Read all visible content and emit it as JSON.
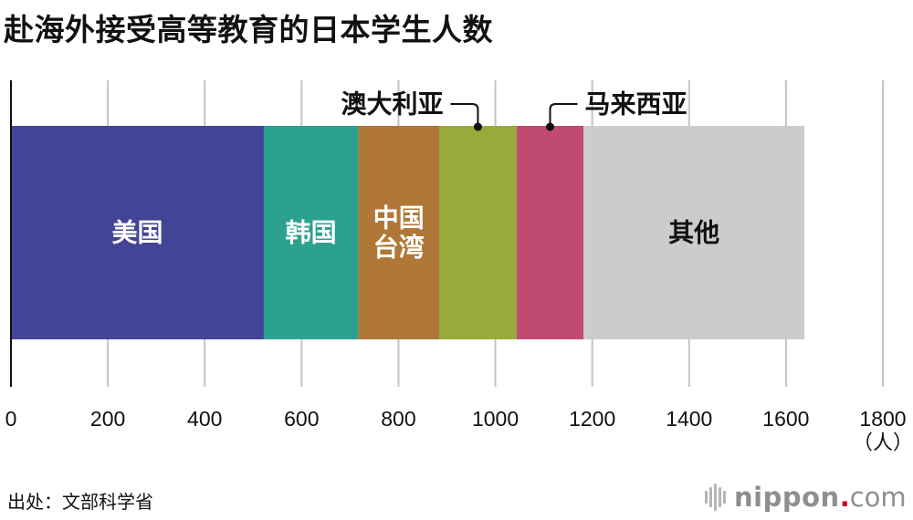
{
  "title": "赴海外接受高等教育的日本学生人数",
  "source": "出处：文部科学省",
  "brand": {
    "name": "nippon",
    "dot": ".",
    "tld": "com",
    "dot_color": "#c8002c"
  },
  "chart_data": {
    "type": "bar",
    "orientation": "horizontal",
    "stacked": true,
    "title": "赴海外接受高等教育的日本学生人数",
    "xunit": "（人）",
    "xlim": [
      0,
      1800
    ],
    "xticks": [
      0,
      200,
      400,
      600,
      800,
      1000,
      1200,
      1400,
      1600,
      1800
    ],
    "grid": true,
    "series": [
      {
        "name": "美国",
        "value": 522,
        "color": "#424595",
        "label": "美国",
        "label_color": "#ffffff"
      },
      {
        "name": "韩国",
        "value": 195,
        "color": "#2ca18f",
        "label": "韩国",
        "label_color": "#ffffff"
      },
      {
        "name": "中国台湾",
        "value": 167,
        "color": "#b07838",
        "label": "中国\n台湾",
        "label_color": "#ffffff"
      },
      {
        "name": "澳大利亚",
        "value": 160,
        "color": "#99a93a",
        "callout": "澳大利亚"
      },
      {
        "name": "马来西亚",
        "value": 138,
        "color": "#c14a72",
        "callout": "马来西亚"
      },
      {
        "name": "其他",
        "value": 456,
        "color": "#cccccc",
        "label": "其他",
        "label_color": "#111111"
      }
    ]
  }
}
